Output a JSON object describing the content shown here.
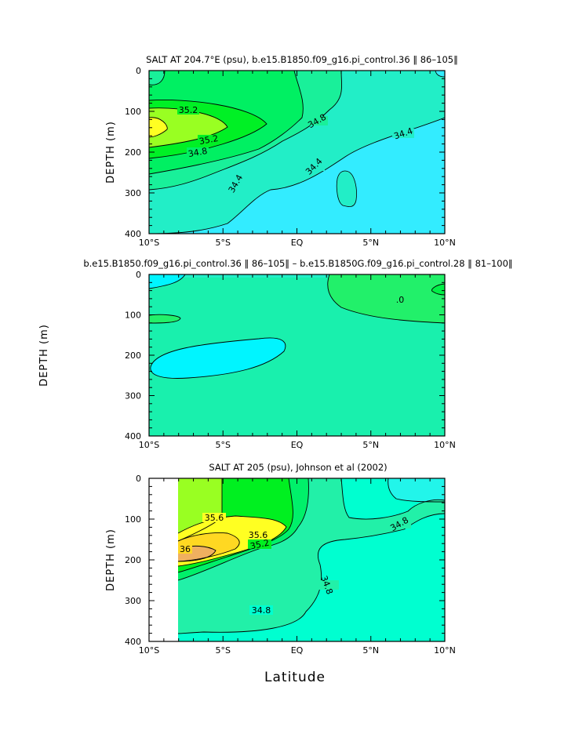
{
  "figure": {
    "xlabel": "Latitude",
    "ylabel": "DEPTH  (m)"
  },
  "chart_data": [
    {
      "type": "heatmap",
      "subtype": "filled-contour",
      "title": "SALT AT 204.7°E (psu), b.e15.B1850.f09_g16.pi_control.36  ‖ 86–105‖",
      "ylabel": "DEPTH  (m)",
      "xlabel": "",
      "xlim": [
        -10,
        10
      ],
      "ylim": [
        400,
        0
      ],
      "xticks": [
        "10°S",
        "5°S",
        "EQ",
        "5°N",
        "10°N"
      ],
      "yticks": [
        "0",
        "100",
        "200",
        "300",
        "400"
      ],
      "contour_labels": [
        "35.2",
        "34.8",
        "35.2",
        "34.8",
        "34.4",
        "34.4",
        "34.4"
      ],
      "colors": {
        "lt34_4": "#33ecff",
        "34_4_34_6": "#22eec7",
        "34_6_34_8": "#19f09a",
        "34_8_35_0": "#00f062",
        "35_0_35_2": "#00f025",
        "35_2_35_4": "#99ff22",
        "gt35_4": "#ffff22"
      }
    },
    {
      "type": "heatmap",
      "subtype": "filled-contour",
      "title": "b.e15.B1850.f09_g16.pi_control.36  ‖ 86–105‖  –  b.e15.B1850G.f09_g16.pi_control.28  ‖ 81–100‖",
      "ylabel": "DEPTH  (m)",
      "xlabel": "",
      "xlim": [
        -10,
        10
      ],
      "ylim": [
        400,
        0
      ],
      "xticks": [
        "10°S",
        "5°S",
        "EQ",
        "5°N",
        "10°N"
      ],
      "yticks": [
        "0",
        "100",
        "200",
        "300",
        "400"
      ],
      "contour_labels": [
        ".0"
      ],
      "colors": {
        "negative": "#00f5ff",
        "near_zero": "#19f0ad",
        "positive": "#22f06a",
        "strong_positive": "#00f047"
      }
    },
    {
      "type": "heatmap",
      "subtype": "filled-contour",
      "title": "SALT AT 205 (psu), Johnson et al (2002)",
      "ylabel": "DEPTH  (m)",
      "xlabel": "Latitude",
      "xlim": [
        -10,
        10
      ],
      "ylim": [
        400,
        0
      ],
      "xticks": [
        "10°S",
        "5°S",
        "EQ",
        "5°N",
        "10°N"
      ],
      "yticks": [
        "0",
        "100",
        "200",
        "300",
        "400"
      ],
      "contour_labels": [
        "35.6",
        "36",
        "35.6",
        "35.2",
        "34.8",
        "34.8",
        "34.8"
      ],
      "colors": {
        "lt34_6": "#22f5ea",
        "34_6_34_8": "#00ffd0",
        "34_8_35_0": "#22f0a8",
        "35_0_35_2": "#00f06a",
        "35_2_35_4": "#00f020",
        "35_4_35_6": "#99ff22",
        "35_6_35_8": "#ffff22",
        "35_8_36_0": "#ffd822",
        "gt36_0": "#f0b060"
      }
    }
  ]
}
